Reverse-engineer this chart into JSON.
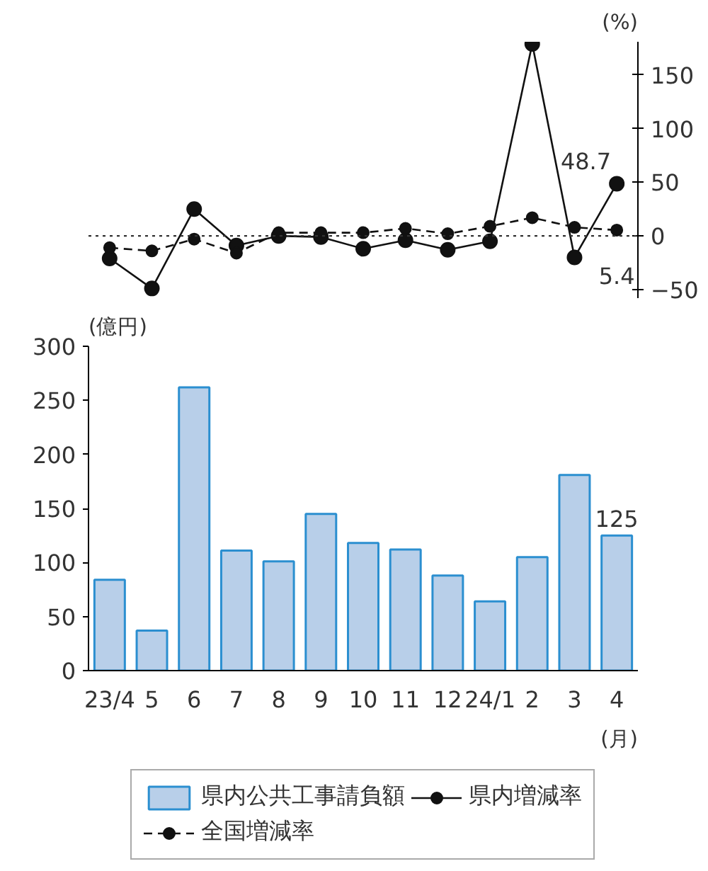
{
  "chart_data": [
    {
      "type": "line",
      "ylabel": "(%)",
      "categories": [
        null,
        null,
        null,
        null,
        null,
        null,
        null,
        null,
        null,
        null,
        null,
        null,
        null
      ],
      "tick_labels": "y",
      "ylim": [
        -58,
        181
      ],
      "yticks": [
        {
          "value": -50,
          "label": "−50"
        },
        0,
        50,
        100,
        150
      ],
      "marker": "circle",
      "legend": "bottom",
      "series": [
        {
          "name": "県内増減率",
          "color": "#111111",
          "line_style": "solid",
          "values": [
            -21,
            -49,
            25,
            -9,
            0,
            -1,
            -12,
            -4,
            -13,
            -5,
            179,
            -20,
            48.7
          ],
          "value_labels": [
            null,
            null,
            null,
            null,
            null,
            null,
            null,
            null,
            null,
            null,
            null,
            null,
            "48.7"
          ]
        },
        {
          "name": "全国増減率",
          "color": "#111111",
          "line_style": "dashed",
          "values": [
            -11,
            -14,
            -3,
            -16,
            3,
            3,
            3,
            7,
            2,
            9,
            17,
            8,
            5.4
          ],
          "value_labels": [
            null,
            null,
            null,
            null,
            null,
            null,
            null,
            null,
            null,
            null,
            null,
            null,
            "5.4"
          ]
        }
      ],
      "ref_lines": [
        {
          "axis": "y",
          "value": 0,
          "color": "#333333",
          "line_style": "dotted"
        }
      ]
    },
    {
      "type": "bar",
      "ylabel": "(億円)",
      "xlabel": "(月)",
      "categories": [
        "23/4",
        "5",
        "6",
        "7",
        "8",
        "9",
        "10",
        "11",
        "12",
        "24/1",
        "2",
        "3",
        "4"
      ],
      "ylim": [
        0,
        300
      ],
      "yticks": [
        0,
        50,
        100,
        150,
        200,
        250,
        300
      ],
      "legend": "bottom",
      "series": [
        {
          "name": "県内公共工事請負額",
          "color": "#b8cfe9",
          "values": [
            84,
            37,
            262,
            111,
            101,
            145,
            118,
            112,
            88,
            64,
            105,
            181,
            125
          ],
          "value_labels": [
            null,
            null,
            null,
            null,
            null,
            null,
            null,
            null,
            null,
            null,
            null,
            null,
            "125"
          ]
        }
      ]
    }
  ]
}
